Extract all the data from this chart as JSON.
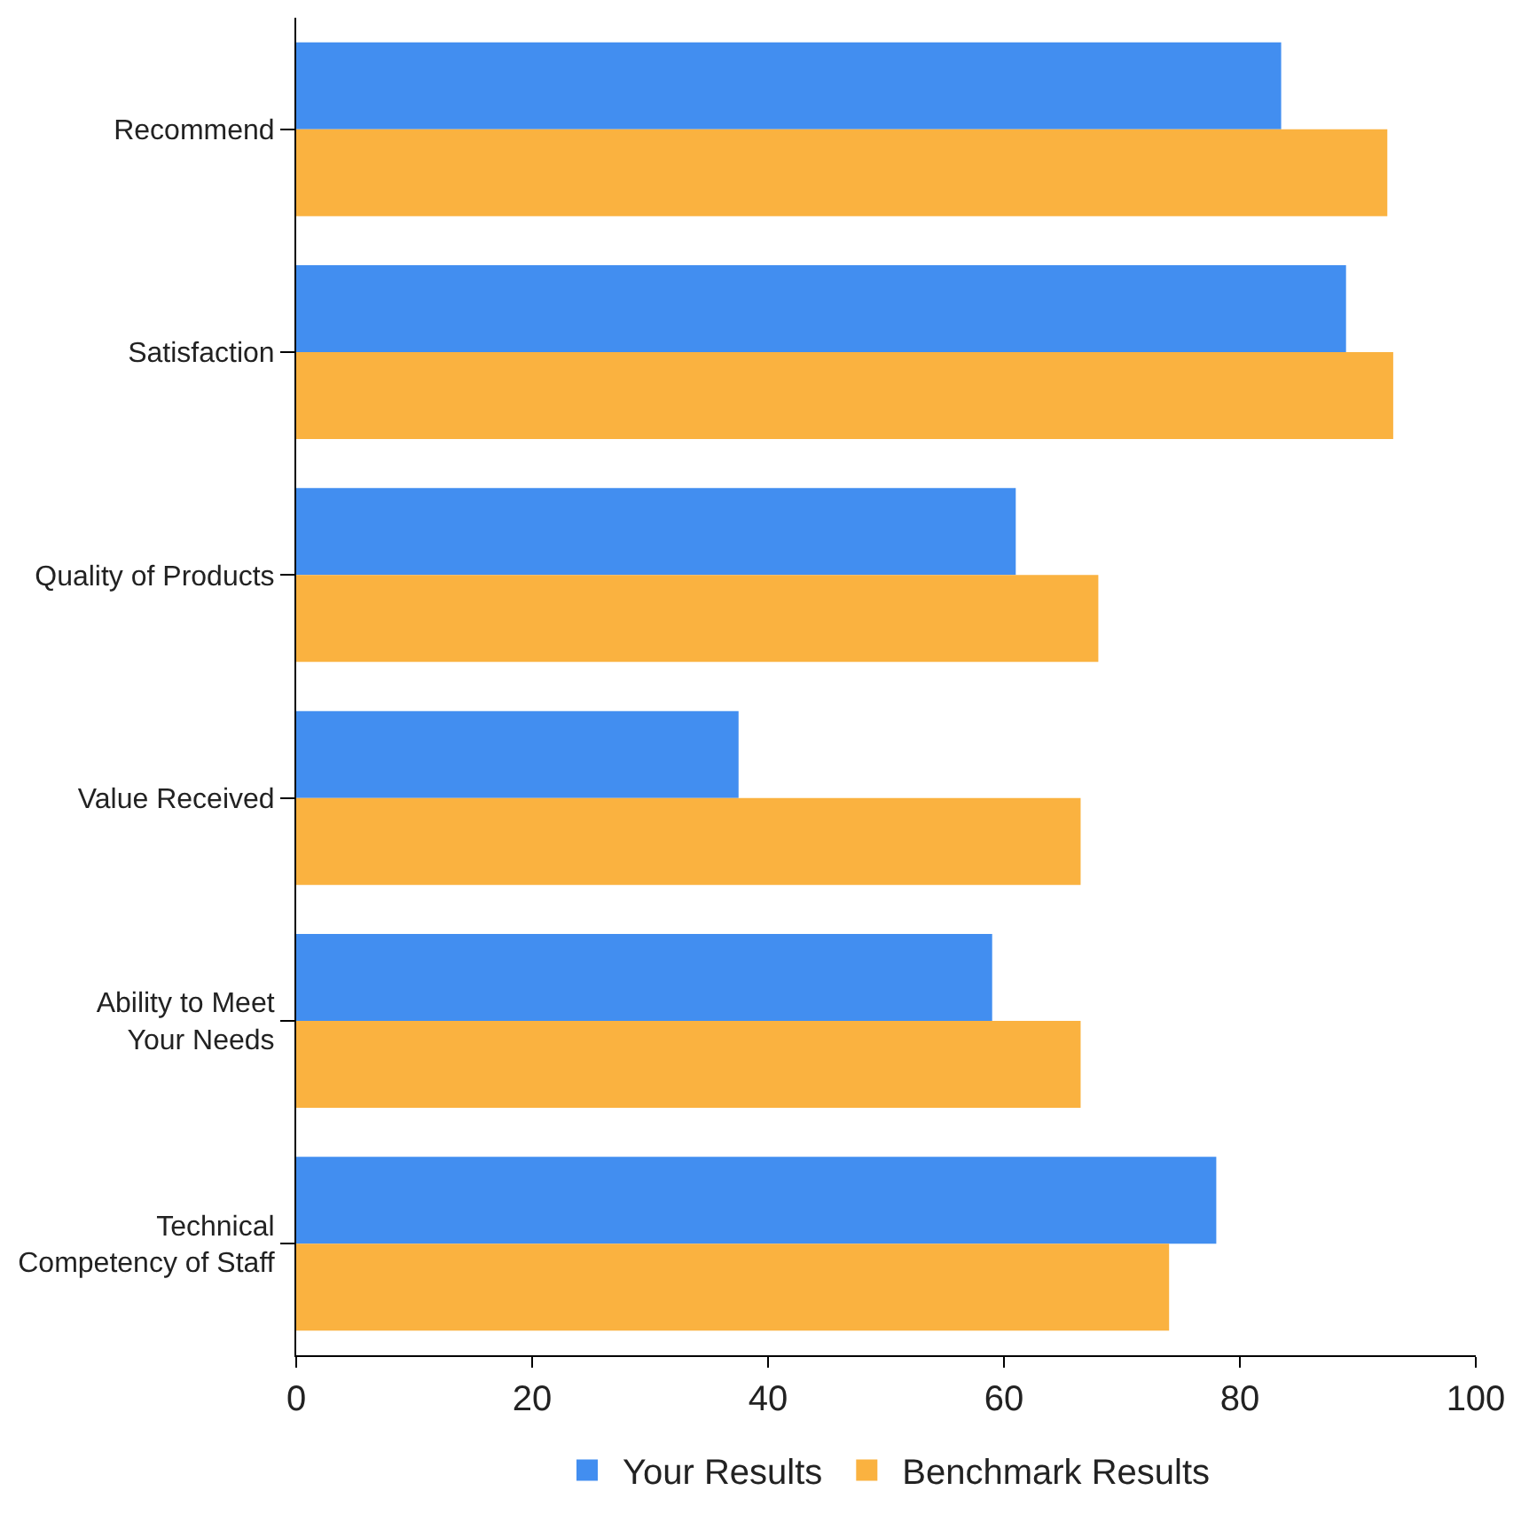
{
  "chart_data": {
    "type": "bar",
    "orientation": "horizontal",
    "categories": [
      "Recommend",
      "Satisfaction",
      "Quality of Products",
      "Value Received",
      "Ability to Meet Your Needs",
      "Technical Competency of Staff"
    ],
    "series": [
      {
        "name": "Your Results",
        "color": "#428ef0",
        "values": [
          83.5,
          89,
          61,
          37.5,
          59,
          78
        ]
      },
      {
        "name": "Benchmark Results",
        "color": "#fab240",
        "values": [
          92.5,
          93,
          68,
          66.5,
          66.5,
          74
        ]
      }
    ],
    "xlim": [
      0,
      100
    ],
    "xticks": [
      0,
      20,
      40,
      60,
      80,
      100
    ],
    "legend": "bottom"
  }
}
